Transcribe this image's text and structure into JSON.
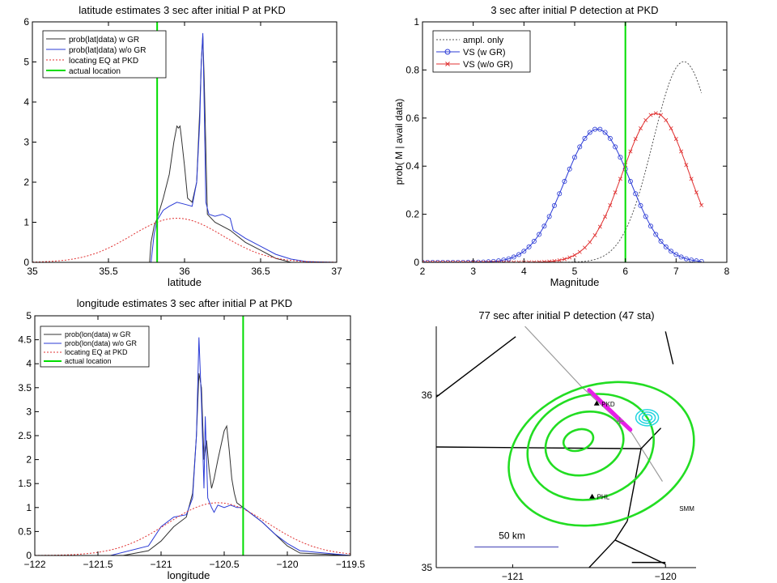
{
  "chart_data": [
    {
      "type": "line",
      "title": "latitude estimates 3 sec after initial P at PKD",
      "xlabel": "latitude",
      "ylabel": "",
      "xlim": [
        35,
        37
      ],
      "ylim": [
        0,
        6
      ],
      "xticks": [
        "35",
        "35.5",
        "36",
        "36.5",
        "37"
      ],
      "xtick_values": [
        35,
        35.5,
        36,
        36.5,
        37
      ],
      "yticks": [
        "0",
        "1",
        "2",
        "3",
        "4",
        "5",
        "6"
      ],
      "ytick_values": [
        0,
        1,
        2,
        3,
        4,
        5,
        6
      ],
      "legend_position": "top-left",
      "vline": {
        "x": 35.82,
        "color": "#00dd00"
      },
      "series": [
        {
          "name": "prob(lat|data) w GR",
          "color": "#333333",
          "dash": "",
          "width": 1,
          "x": [
            35.0,
            35.77,
            35.78,
            35.8,
            35.82,
            35.86,
            35.9,
            35.93,
            35.95,
            35.96,
            35.97,
            35.98,
            36.0,
            36.02,
            36.05,
            36.08,
            36.1,
            36.11,
            36.12,
            36.13,
            36.15,
            36.2,
            36.3,
            36.4,
            36.5,
            36.6,
            36.7,
            37.0
          ],
          "y": [
            0,
            0,
            0.5,
            0.9,
            1.1,
            1.6,
            2.2,
            3.0,
            3.4,
            3.35,
            3.4,
            3.1,
            2.4,
            1.6,
            1.5,
            2.0,
            3.8,
            5.0,
            5.65,
            4.5,
            1.2,
            1.0,
            0.8,
            0.5,
            0.3,
            0.1,
            0,
            0
          ]
        },
        {
          "name": "prob(lat|data) w/o GR",
          "color": "#2b3bd6",
          "dash": "",
          "width": 1,
          "x": [
            35.0,
            35.78,
            35.8,
            35.82,
            35.86,
            35.9,
            35.95,
            36.0,
            36.05,
            36.08,
            36.1,
            36.11,
            36.12,
            36.13,
            36.14,
            36.16,
            36.2,
            36.25,
            36.3,
            36.32,
            36.4,
            36.5,
            36.6,
            36.7,
            36.8,
            37.0
          ],
          "y": [
            0,
            0,
            0.7,
            1.05,
            1.3,
            1.4,
            1.5,
            1.45,
            1.4,
            2.0,
            3.5,
            5.0,
            5.72,
            3.8,
            1.5,
            1.2,
            1.15,
            1.2,
            1.1,
            0.8,
            0.6,
            0.4,
            0.2,
            0.08,
            0.02,
            0
          ]
        },
        {
          "name": "locating EQ at PKD",
          "color": "#e03030",
          "dash": "2,2",
          "width": 1,
          "gauss": {
            "mu": 35.95,
            "sigma": 0.3,
            "peak": 1.1
          }
        }
      ]
    },
    {
      "type": "line",
      "title": "3 sec after initial P detection at PKD",
      "xlabel": "Magnitude",
      "ylabel": "prob( M | avail data)",
      "xlim": [
        2,
        8
      ],
      "ylim": [
        0,
        1
      ],
      "xticks": [
        "2",
        "3",
        "4",
        "5",
        "6",
        "7",
        "8"
      ],
      "xtick_values": [
        2,
        3,
        4,
        5,
        6,
        7,
        8
      ],
      "yticks": [
        "0",
        "0.2",
        "0.4",
        "0.6",
        "0.8",
        "1"
      ],
      "ytick_values": [
        0,
        0.2,
        0.4,
        0.6,
        0.8,
        1
      ],
      "legend_position": "top-left",
      "vline": {
        "x": 6.0,
        "color": "#00dd00"
      },
      "series": [
        {
          "name": "ampl. only",
          "color": "#555555",
          "dash": "2,2",
          "width": 1,
          "marker": "none",
          "gauss": {
            "mu": 7.15,
            "sigma": 0.6,
            "peak": 0.835,
            "xmin": 2,
            "xmax": 7.5,
            "step": 0.05
          }
        },
        {
          "name": "VS (w GR)",
          "color": "#2b3bd6",
          "dash": "",
          "width": 1,
          "marker": "circle",
          "gauss": {
            "mu": 5.45,
            "sigma": 0.65,
            "peak": 0.555,
            "xmin": 2,
            "xmax": 7.5,
            "step": 0.1
          }
        },
        {
          "name": "VS (w/o GR)",
          "color": "#e03030",
          "dash": "",
          "width": 1,
          "marker": "x",
          "gauss": {
            "mu": 6.6,
            "sigma": 0.65,
            "peak": 0.62,
            "xmin": 2,
            "xmax": 7.5,
            "step": 0.1
          }
        }
      ]
    },
    {
      "type": "line",
      "title": "longitude estimates 3 sec after initial P at PKD",
      "xlabel": "longitude",
      "ylabel": "",
      "xlim": [
        -122,
        -119.5
      ],
      "ylim": [
        0,
        5
      ],
      "xticks": [
        "−122",
        "−121.5",
        "−121",
        "−120.5",
        "−120",
        "−119.5"
      ],
      "xtick_values": [
        -122,
        -121.5,
        -121,
        -120.5,
        -120,
        -119.5
      ],
      "yticks": [
        "0",
        "0.5",
        "1",
        "1.5",
        "2",
        "2.5",
        "3",
        "3.5",
        "4",
        "4.5",
        "5"
      ],
      "ytick_values": [
        0,
        0.5,
        1,
        1.5,
        2,
        2.5,
        3,
        3.5,
        4,
        4.5,
        5
      ],
      "legend_position": "top-left",
      "vline": {
        "x": -120.35,
        "color": "#00dd00"
      },
      "series": [
        {
          "name": "prob(lon(data) w GR",
          "color": "#333333",
          "dash": "",
          "width": 1,
          "x": [
            -122.0,
            -121.3,
            -121.1,
            -121.0,
            -120.9,
            -120.8,
            -120.75,
            -120.72,
            -120.7,
            -120.68,
            -120.66,
            -120.64,
            -120.62,
            -120.6,
            -120.58,
            -120.55,
            -120.5,
            -120.48,
            -120.46,
            -120.44,
            -120.42,
            -120.4,
            -120.35,
            -120.3,
            -120.2,
            -120.1,
            -120.0,
            -119.9,
            -119.5
          ],
          "y": [
            0,
            0,
            0.1,
            0.3,
            0.6,
            0.8,
            1.3,
            2.5,
            3.8,
            3.5,
            2.0,
            2.4,
            1.8,
            1.4,
            1.6,
            2.0,
            2.6,
            2.7,
            2.2,
            1.6,
            1.3,
            1.1,
            1.0,
            0.9,
            0.7,
            0.45,
            0.2,
            0.05,
            0
          ]
        },
        {
          "name": "prob(lon(data) w/o GR",
          "color": "#2b3bd6",
          "dash": "",
          "width": 1,
          "x": [
            -122.0,
            -121.4,
            -121.1,
            -121.0,
            -120.9,
            -120.8,
            -120.75,
            -120.72,
            -120.7,
            -120.68,
            -120.66,
            -120.65,
            -120.63,
            -120.6,
            -120.58,
            -120.55,
            -120.5,
            -120.45,
            -120.4,
            -120.35,
            -120.3,
            -120.2,
            -120.1,
            -120.0,
            -119.9,
            -119.5
          ],
          "y": [
            0,
            0,
            0.2,
            0.6,
            0.8,
            0.85,
            1.2,
            2.5,
            4.55,
            3.2,
            1.4,
            2.9,
            1.2,
            1.0,
            0.9,
            1.05,
            1.0,
            1.05,
            1.0,
            1.0,
            0.9,
            0.7,
            0.45,
            0.25,
            0.1,
            0
          ]
        },
        {
          "name": "locating EQ at PKD",
          "color": "#e03030",
          "dash": "2,2",
          "width": 1,
          "gauss": {
            "mu": -120.55,
            "sigma": 0.4,
            "peak": 1.1
          }
        }
      ]
    },
    {
      "type": "map",
      "title": "77 sec after initial P detection (47 sta)",
      "xlim": [
        -121.5,
        -119.8
      ],
      "ylim": [
        35,
        36.4
      ],
      "xticks": [
        "−121",
        "−120"
      ],
      "xtick_values": [
        -121,
        -120
      ],
      "yticks": [
        "35",
        "36"
      ],
      "ytick_values": [
        35,
        36
      ],
      "stations": [
        {
          "name": "PKD",
          "lon": -120.45,
          "lat": 35.95
        },
        {
          "name": "PHL",
          "lon": -120.48,
          "lat": 35.41
        }
      ],
      "labels": [
        {
          "text": "SMM",
          "lon": -119.91,
          "lat": 35.33
        }
      ],
      "scale_bar": {
        "label": "50 km",
        "lon1": -121.25,
        "lon2": -120.7,
        "lat": 35.12
      },
      "boundaries": [
        [
          [
            -121.5,
            35.99
          ],
          [
            -120.98,
            36.34
          ]
        ],
        [
          [
            -121.5,
            35.7
          ],
          [
            -120.16,
            35.69
          ]
        ],
        [
          [
            -120.16,
            35.69
          ],
          [
            -120.03,
            35.81
          ]
        ],
        [
          [
            -120.16,
            35.69
          ],
          [
            -120.25,
            35.27
          ]
        ],
        [
          [
            -120.25,
            35.27
          ],
          [
            -120.33,
            35.16
          ]
        ],
        [
          [
            -120.33,
            35.16
          ],
          [
            -120.0,
            35.02
          ]
        ],
        [
          [
            -120.33,
            35.16
          ],
          [
            -120.5,
            35.0
          ]
        ],
        [
          [
            -120.22,
            35.03
          ],
          [
            -120.0,
            35.03
          ]
        ],
        [
          [
            -120.0,
            36.37
          ],
          [
            -119.95,
            36.18
          ]
        ]
      ],
      "fault": [
        [
          -120.92,
          36.4
        ],
        [
          -120.55,
          36.05
        ],
        [
          -120.22,
          35.78
        ],
        [
          -120.02,
          35.5
        ]
      ],
      "rupture": {
        "color": "#e81ee8",
        "line": [
          [
            -120.5,
            36.03
          ],
          [
            -120.23,
            35.8
          ]
        ]
      },
      "contours": {
        "color": "#22dd22",
        "rings": [
          {
            "cx": -120.57,
            "cy": 35.74,
            "rx": 0.1,
            "ry": 0.06
          },
          {
            "cx": -120.53,
            "cy": 35.72,
            "rx": 0.26,
            "ry": 0.18
          },
          {
            "cx": -120.49,
            "cy": 35.7,
            "rx": 0.42,
            "ry": 0.3
          },
          {
            "cx": -120.42,
            "cy": 35.66,
            "rx": 0.62,
            "ry": 0.4
          }
        ]
      },
      "fault_color": "#999999",
      "secondary_contour_color": "#22d4e0"
    }
  ]
}
